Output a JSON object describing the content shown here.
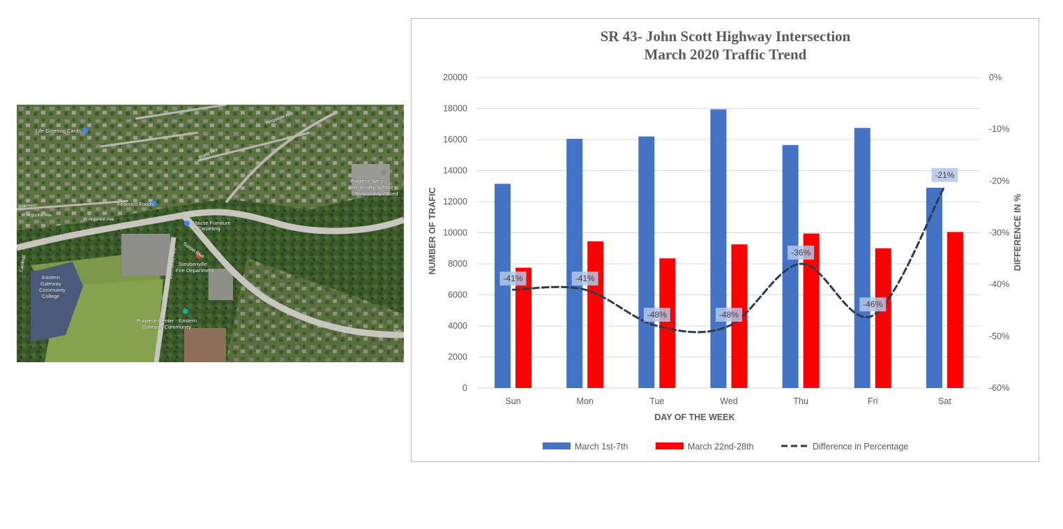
{
  "map": {
    "labels": {
      "life_greeting_cards": "Life Greeting Cards",
      "federico_foods": "Federico Foods",
      "pugliese_west_school_1": "Pugliese West",
      "pugliese_west_school_2": "Elementary School",
      "pugliese_west_school_3": "Temporarily closed",
      "mause_furniture_1": "Mause Furniture",
      "mause_furniture_2": "& Carpeting",
      "steubenville_fire_1": "Steubenville",
      "steubenville_fire_2": "Fire Department",
      "eastern_gateway_1": "Eastern",
      "eastern_gateway_2": "Gateway",
      "eastern_gateway_3": "Community",
      "eastern_gateway_4": "College",
      "pugliese_center_1": "Pugliese Center - Eastern",
      "pugliese_center_2": "Gateway Community"
    },
    "roads": {
      "sunset_blvd_west": "Sunset Blvd",
      "sunset_blvd_east": "Sunset Blvd",
      "sunset_blvd_edge": "Sun",
      "wilkinson": "Wilkinson",
      "w_argonne_1": "W Argonne Ave",
      "w_argonne_2": "W Argonne Ave",
      "john_scott_hwy": "John Scott Hwy",
      "kingsdale_ave": "Kingsdale Ave",
      "brady_ave": "Brady Ave",
      "cardinal": "Cardinal"
    },
    "colors": {
      "vegetation": "#3c5a2c",
      "road": "#c9c6bf",
      "field": "#7d9a4a",
      "parking": "#8f8f8a"
    }
  },
  "chart_data": {
    "type": "bar",
    "title": "SR 43- John Scott Highway Intersection",
    "subtitle": "March 2020 Traffic Trend",
    "categories": [
      "Sun",
      "Mon",
      "Tue",
      "Wed",
      "Thu",
      "Fri",
      "Sat"
    ],
    "series": [
      {
        "name": "March 1st-7th",
        "type": "bar",
        "color": "#4472c4",
        "values": [
          13150,
          16050,
          16200,
          17950,
          15650,
          16750,
          12900
        ]
      },
      {
        "name": "March 22nd-28th",
        "type": "bar",
        "color": "#ff0000",
        "values": [
          7750,
          9450,
          8350,
          9250,
          9950,
          9000,
          10050
        ]
      },
      {
        "name": "Difference in Percentage",
        "type": "line",
        "axis": "y2",
        "color": "#2e3a4e",
        "style": "dashed",
        "smooth": true,
        "values": [
          -0.41,
          -0.41,
          -0.48,
          -0.48,
          -0.36,
          -0.46,
          -0.21
        ],
        "data_labels": [
          "-41%",
          "-41%",
          "-48%",
          "-48%",
          "-36%",
          "-46%",
          "-21%"
        ]
      }
    ],
    "xlabel": "DAY OF THE WEEK",
    "ylabel": "NUMBER OF TRAFIC",
    "y2label": "DIFFERENCE IN %",
    "ylim": [
      0,
      20000
    ],
    "y_ticks": [
      "0",
      "2000",
      "4000",
      "6000",
      "8000",
      "10000",
      "12000",
      "14000",
      "16000",
      "18000",
      "20000"
    ],
    "y2lim": [
      -0.6,
      0
    ],
    "y2_ticks": [
      "-60%",
      "-50%",
      "-40%",
      "-30%",
      "-20%",
      "-10%",
      "0%"
    ],
    "grid": true,
    "legend_position": "bottom",
    "colors": {
      "title": "#595959",
      "axis_text": "#595959",
      "grid": "#d9d9d9",
      "label_box": "#b4c7e7"
    }
  }
}
